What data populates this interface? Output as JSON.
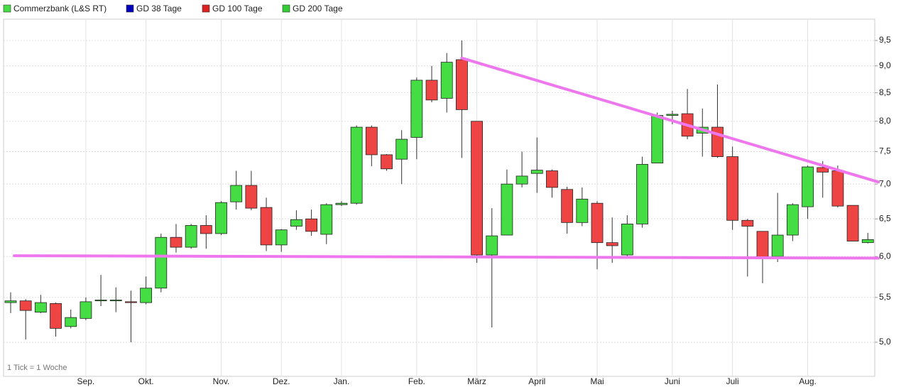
{
  "chart_data": {
    "type": "candlestick",
    "footnote": "1 Tick = 1 Woche",
    "log_scale": true,
    "grid": true,
    "up_color": "#44dd44",
    "down_color": "#ee4444",
    "categories": [
      null,
      null,
      null,
      null,
      null,
      "Sep.",
      null,
      null,
      null,
      "Okt.",
      null,
      null,
      null,
      null,
      "Nov.",
      null,
      null,
      null,
      "Dez.",
      null,
      null,
      null,
      "Jan.",
      null,
      null,
      null,
      null,
      "Feb.",
      null,
      null,
      null,
      "März",
      null,
      null,
      null,
      "April",
      null,
      null,
      null,
      "Mai",
      null,
      null,
      null,
      null,
      "Juni",
      null,
      null,
      null,
      "Juli",
      null,
      null,
      null,
      null,
      "Aug.",
      null,
      null,
      null,
      null
    ],
    "series": [
      {
        "name": "Commerzbank (L&S RT)",
        "color": "#44dd44",
        "open": [
          5.44,
          5.46,
          5.33,
          5.43,
          5.17,
          5.26,
          5.46,
          5.46,
          5.45,
          5.44,
          5.61,
          6.25,
          6.12,
          6.41,
          6.3,
          6.74,
          6.98,
          6.66,
          6.15,
          6.4,
          6.5,
          6.29,
          6.7,
          6.72,
          7.9,
          7.45,
          7.38,
          7.73,
          8.73,
          8.4,
          9.12,
          8.0,
          6.02,
          6.28,
          7.0,
          7.16,
          7.2,
          6.92,
          6.45,
          6.72,
          6.18,
          6.02,
          6.43,
          7.32,
          8.1,
          8.13,
          7.8,
          7.9,
          7.42,
          6.48,
          6.33,
          6.0,
          6.28,
          6.67,
          7.25,
          7.2,
          6.69,
          6.18
        ],
        "high": [
          5.56,
          5.48,
          5.53,
          5.44,
          5.36,
          5.5,
          5.77,
          5.62,
          5.58,
          5.75,
          6.3,
          6.43,
          6.43,
          6.55,
          6.75,
          7.2,
          7.2,
          6.8,
          6.36,
          6.62,
          6.63,
          6.72,
          6.75,
          7.93,
          7.93,
          7.46,
          7.85,
          8.78,
          9.0,
          9.25,
          9.5,
          8.0,
          6.65,
          7.22,
          7.5,
          7.73,
          7.22,
          6.96,
          6.95,
          6.75,
          6.52,
          6.55,
          7.42,
          8.15,
          8.18,
          8.57,
          8.22,
          8.65,
          7.58,
          6.5,
          6.33,
          6.87,
          6.72,
          7.28,
          7.35,
          7.28,
          6.69,
          6.31
        ],
        "low": [
          5.32,
          5.03,
          5.32,
          5.06,
          5.15,
          5.24,
          5.4,
          5.33,
          5.0,
          5.42,
          5.56,
          6.05,
          6.1,
          6.1,
          6.28,
          6.63,
          6.62,
          6.07,
          6.06,
          6.35,
          6.27,
          6.16,
          6.68,
          6.7,
          7.27,
          7.2,
          7.0,
          7.38,
          8.33,
          8.15,
          7.4,
          5.92,
          5.16,
          6.28,
          6.95,
          6.87,
          6.8,
          6.3,
          6.4,
          5.84,
          5.92,
          6.0,
          6.38,
          7.32,
          7.95,
          7.7,
          7.42,
          7.4,
          6.35,
          5.75,
          5.67,
          5.93,
          6.2,
          6.5,
          6.8,
          6.66,
          6.2,
          6.17
        ],
        "close": [
          5.46,
          5.35,
          5.44,
          5.15,
          5.27,
          5.45,
          5.47,
          5.47,
          5.44,
          5.61,
          6.25,
          6.12,
          6.41,
          6.3,
          6.73,
          6.98,
          6.65,
          6.15,
          6.35,
          6.49,
          6.33,
          6.7,
          6.72,
          7.9,
          7.45,
          7.23,
          7.7,
          8.73,
          8.37,
          9.07,
          8.2,
          6.02,
          6.27,
          7.0,
          7.12,
          7.21,
          6.95,
          6.45,
          6.78,
          6.18,
          6.14,
          6.43,
          7.3,
          8.1,
          8.12,
          7.75,
          7.9,
          7.42,
          6.48,
          6.4,
          5.97,
          6.28,
          6.7,
          7.26,
          7.18,
          6.68,
          6.2,
          6.22
        ]
      },
      {
        "name": "GD 38 Tage",
        "color": "#0000bb"
      },
      {
        "name": "GD 100 Tage",
        "color": "#dd2222"
      },
      {
        "name": "GD 200 Tage",
        "color": "#33cc33"
      }
    ],
    "trendlines": [
      {
        "color": "#ee77ee",
        "start": [
          30,
          9.15
        ],
        "end": [
          57.7,
          7.03
        ]
      },
      {
        "color": "#ee77ee",
        "start": [
          0.24,
          6.01
        ],
        "end": [
          57.7,
          5.98
        ]
      }
    ],
    "ylim": [
      4.65,
      9.94
    ],
    "yticks": [
      {
        "value": 5.0,
        "label": "5,0"
      },
      {
        "value": 5.5,
        "label": "5,5"
      },
      {
        "value": 6.0,
        "label": "6,0"
      },
      {
        "value": 6.5,
        "label": "6,5"
      },
      {
        "value": 7.0,
        "label": "7,0"
      },
      {
        "value": 7.5,
        "label": "7,5"
      },
      {
        "value": 8.0,
        "label": "8,0"
      },
      {
        "value": 8.5,
        "label": "8,5"
      },
      {
        "value": 9.0,
        "label": "9,0"
      },
      {
        "value": 9.5,
        "label": "9,5"
      }
    ]
  }
}
